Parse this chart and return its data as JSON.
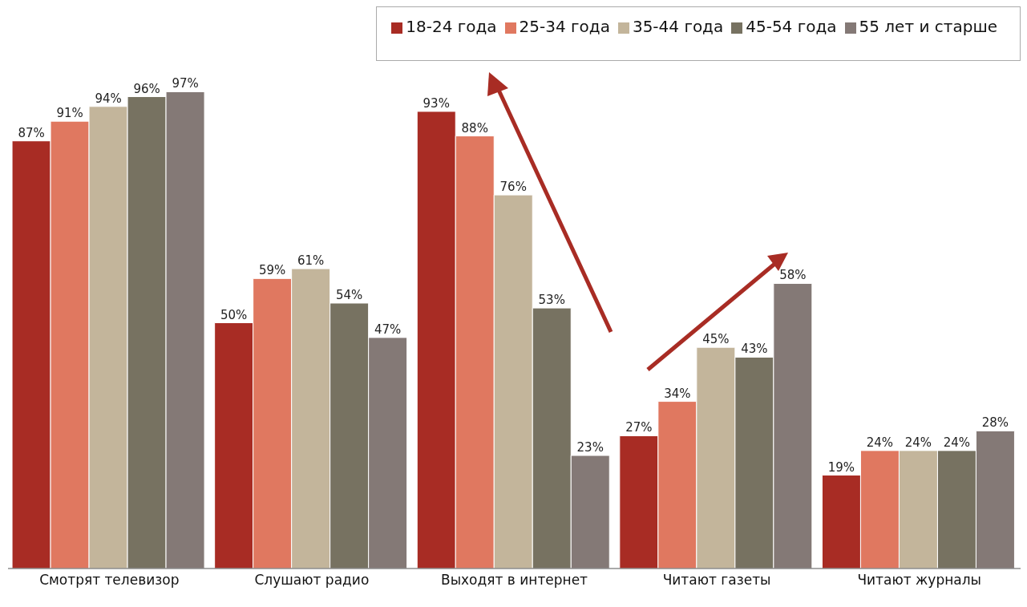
{
  "chart_data": {
    "type": "bar",
    "categories": [
      "Смотрят телевизор",
      "Слушают радио",
      "Выходят в интернет",
      "Читают газеты",
      "Читают журналы"
    ],
    "series": [
      {
        "name": "18-24 года",
        "color": "#a82c24",
        "values": [
          87,
          50,
          93,
          27,
          19
        ],
        "value_labels": [
          "87%",
          "50%",
          "93%",
          "27%",
          "19%"
        ]
      },
      {
        "name": "25-34 года",
        "color": "#e07860",
        "values": [
          91,
          59,
          88,
          34,
          24
        ],
        "value_labels": [
          "91%",
          "59%",
          "88%",
          "34%",
          "24%"
        ]
      },
      {
        "name": "35-44 года",
        "color": "#c3b59b",
        "values": [
          94,
          61,
          76,
          45,
          24
        ],
        "value_labels": [
          "94%",
          "61%",
          "76%",
          "45%",
          "24%"
        ]
      },
      {
        "name": "45-54 года",
        "color": "#777261",
        "values": [
          96,
          54,
          53,
          43,
          24
        ],
        "value_labels": [
          "96%",
          "54%",
          "53%",
          "43%",
          "24%"
        ]
      },
      {
        "name": "55 лет и старше",
        "color": "#847976",
        "values": [
          97,
          47,
          23,
          58,
          28
        ],
        "value_labels": [
          "97%",
          "47%",
          "23%",
          "58%",
          "28%"
        ]
      }
    ],
    "legend": "top right"
  }
}
